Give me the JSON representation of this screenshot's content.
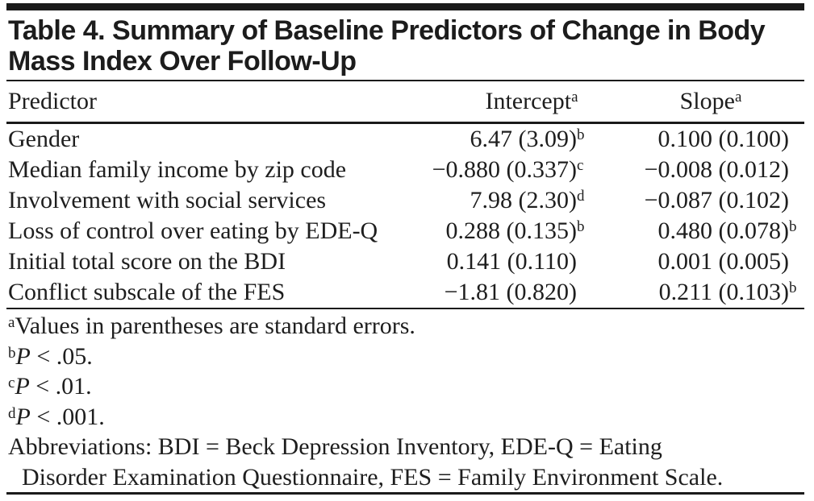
{
  "table": {
    "title_line1": "Table 4. Summary of Baseline Predictors of Change in Body",
    "title_line2": "Mass Index Over Follow-Up",
    "columns": {
      "predictor": "Predictor",
      "intercept": "Intercept",
      "intercept_sup": "a",
      "slope": "Slope",
      "slope_sup": "a"
    },
    "rows": [
      {
        "predictor": "Gender",
        "intercept": "6.47 (3.09)",
        "intercept_sup": "b",
        "slope": "0.100 (0.100)",
        "slope_sup": ""
      },
      {
        "predictor": "Median family income by zip code",
        "intercept": "−0.880 (0.337)",
        "intercept_sup": "c",
        "slope": "−0.008 (0.012)",
        "slope_sup": ""
      },
      {
        "predictor": "Involvement with social services",
        "intercept": "7.98 (2.30)",
        "intercept_sup": "d",
        "slope": "−0.087 (0.102)",
        "slope_sup": ""
      },
      {
        "predictor": "Loss of control over eating by EDE-Q",
        "intercept": "0.288 (0.135)",
        "intercept_sup": "b",
        "slope": "0.480 (0.078)",
        "slope_sup": "b"
      },
      {
        "predictor": "Initial total score on the BDI",
        "intercept": "0.141 (0.110)",
        "intercept_sup": "",
        "slope": "0.001 (0.005)",
        "slope_sup": ""
      },
      {
        "predictor": "Conflict subscale of the FES",
        "intercept": "−1.81 (0.820)",
        "intercept_sup": "",
        "slope": "0.211 (0.103)",
        "slope_sup": "b"
      }
    ],
    "footnotes": [
      {
        "marker": "a",
        "italic": "",
        "text": "Values in parentheses are standard errors."
      },
      {
        "marker": "b",
        "italic": "P",
        "text": " < .05."
      },
      {
        "marker": "c",
        "italic": "P",
        "text": " < .01."
      },
      {
        "marker": "d",
        "italic": "P",
        "text": " < .001."
      }
    ],
    "abbreviations_line1": "Abbreviations: BDI = Beck Depression Inventory, EDE-Q = Eating",
    "abbreviations_line2": "Disorder Examination Questionnaire, FES = Family Environment Scale.",
    "colors": {
      "background": "#ffffff",
      "text": "#1e1e1e",
      "rule": "#1a1a1a"
    }
  }
}
